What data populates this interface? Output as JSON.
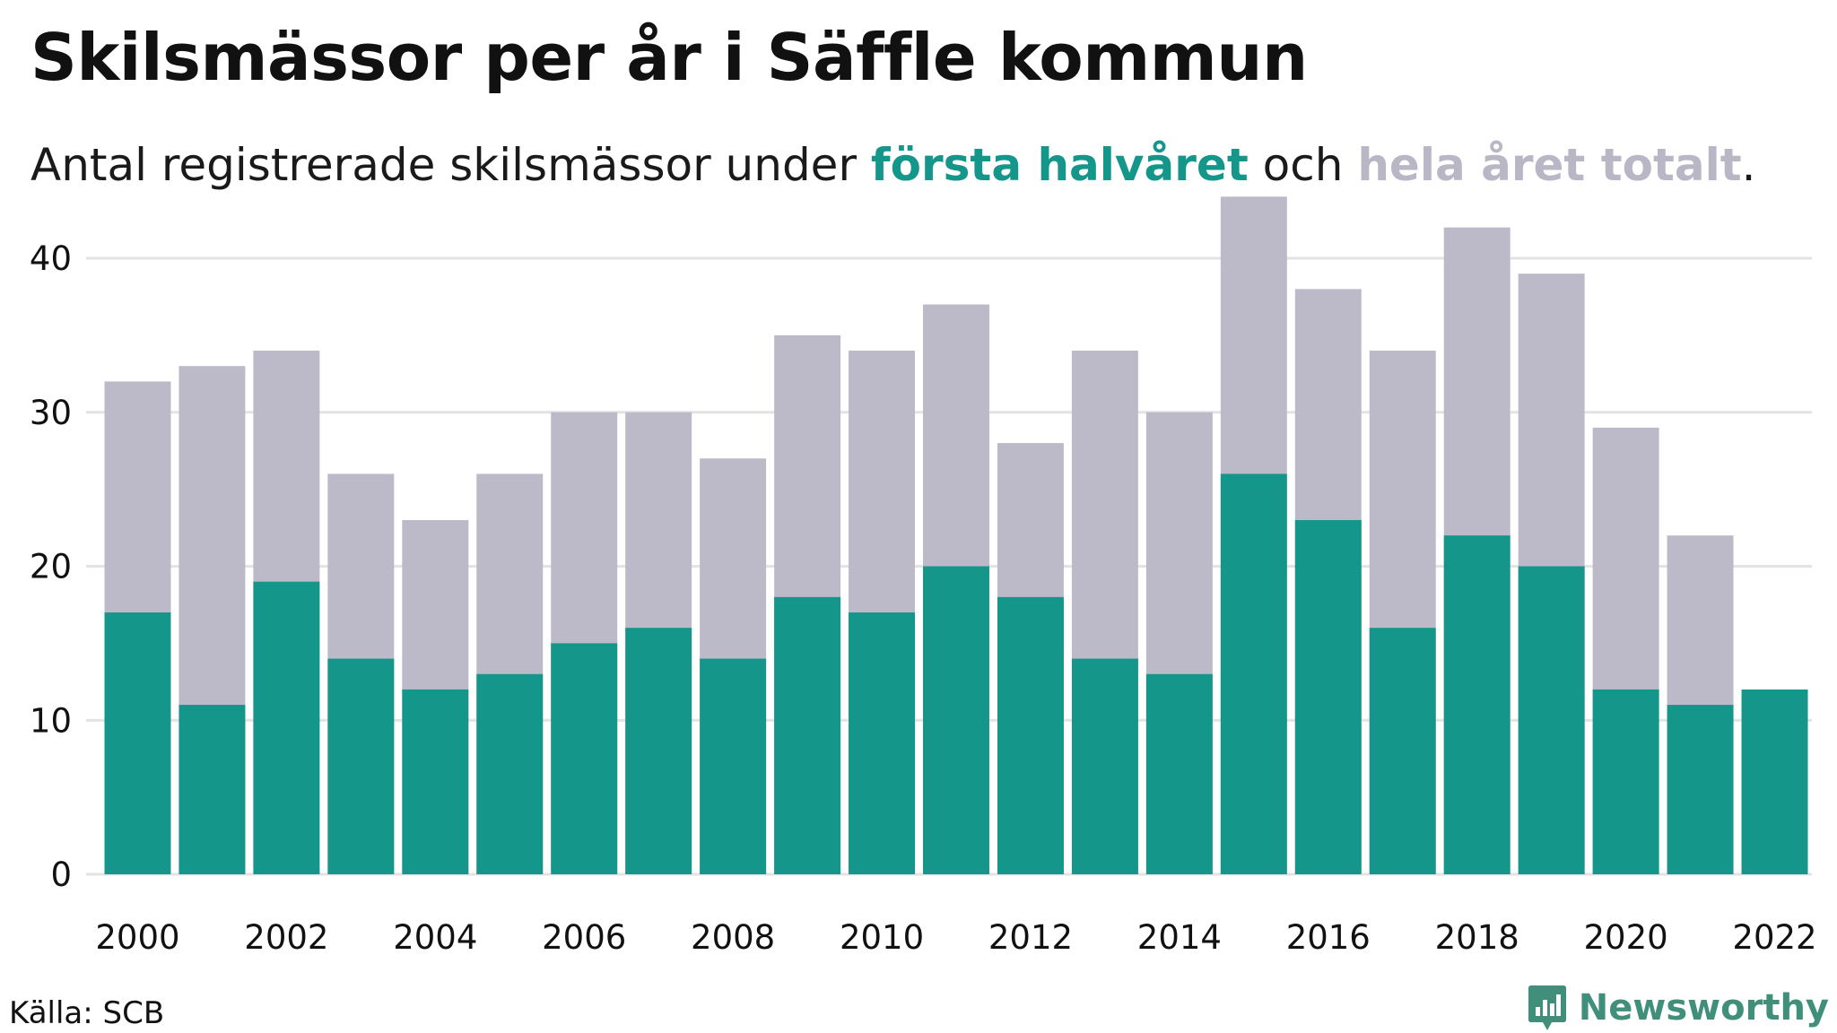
{
  "title": "Skilsmässor per år i Säffle kommun",
  "subtitle": {
    "prefix": "Antal registrerade skilsmässor under ",
    "first_half": "första halvåret",
    "middle": " och ",
    "total": "hela året totalt",
    "suffix": "."
  },
  "source": "Källa: SCB",
  "brand": "Newsworthy",
  "colors": {
    "first_half": "#14968a",
    "total": "#bcbac8",
    "grid": "#e3e3e3",
    "brand": "#3f8f7a"
  },
  "chart_data": {
    "type": "bar",
    "categories": [
      2000,
      2001,
      2002,
      2003,
      2004,
      2005,
      2006,
      2007,
      2008,
      2009,
      2010,
      2011,
      2012,
      2013,
      2014,
      2015,
      2016,
      2017,
      2018,
      2019,
      2020,
      2021,
      2022
    ],
    "series": [
      {
        "name": "hela året totalt",
        "values": [
          32,
          33,
          34,
          26,
          23,
          26,
          30,
          30,
          27,
          35,
          34,
          37,
          28,
          34,
          30,
          44,
          38,
          34,
          42,
          39,
          29,
          22,
          null
        ]
      },
      {
        "name": "första halvåret",
        "values": [
          17,
          11,
          19,
          14,
          12,
          13,
          15,
          16,
          14,
          18,
          17,
          20,
          18,
          14,
          13,
          26,
          23,
          16,
          22,
          20,
          12,
          11,
          12
        ]
      }
    ],
    "x_tick_labels": [
      "2000",
      "2002",
      "2004",
      "2006",
      "2008",
      "2010",
      "2012",
      "2014",
      "2016",
      "2018",
      "2020",
      "2022"
    ],
    "y_ticks": [
      0,
      10,
      20,
      30,
      40
    ],
    "ylim": [
      0,
      46
    ],
    "grid": true,
    "overlay": true
  }
}
